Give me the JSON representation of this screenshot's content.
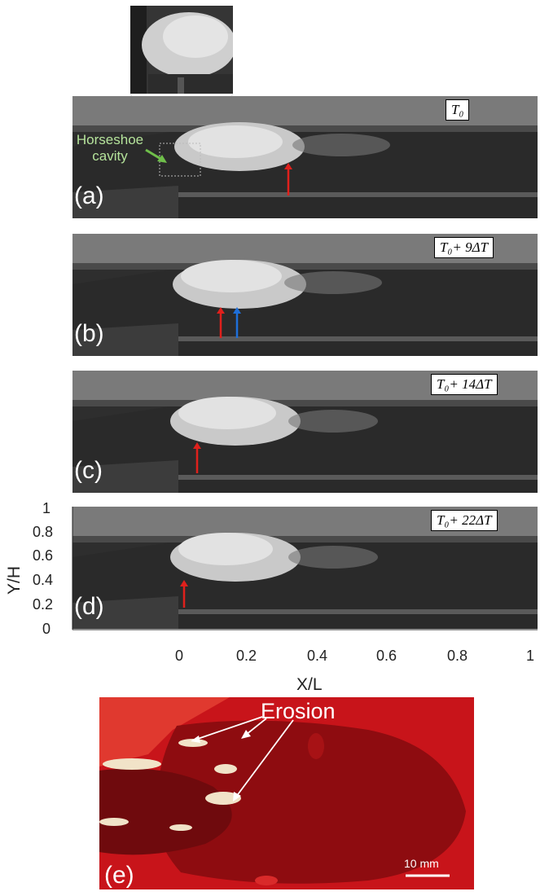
{
  "panels": [
    {
      "letter": "(a)",
      "time": "T₀"
    },
    {
      "letter": "(b)",
      "time": "T₀+ 9ΔT"
    },
    {
      "letter": "(c)",
      "time": "T₀+ 14ΔT"
    },
    {
      "letter": "(d)",
      "time": "T₀+ 22ΔT"
    },
    {
      "letter": "(e)"
    }
  ],
  "annotation": {
    "line1": "Horseshoe",
    "line2": "cavity"
  },
  "axes": {
    "xlabel": "X/L",
    "ylabel": "Y/H",
    "xticks": [
      "0",
      "0.2",
      "0.4",
      "0.6",
      "0.8",
      "1"
    ],
    "yticks": [
      "1",
      "0.8",
      "0.6",
      "0.4",
      "0.2",
      "0"
    ]
  },
  "erosion_label": "Erosion",
  "scale_bar": "10 mm",
  "colors": {
    "arrow_red": "#e0201c",
    "arrow_blue": "#1e6fd9",
    "annot_green": "#6fbf4a",
    "plate_red": "#c8141a"
  }
}
